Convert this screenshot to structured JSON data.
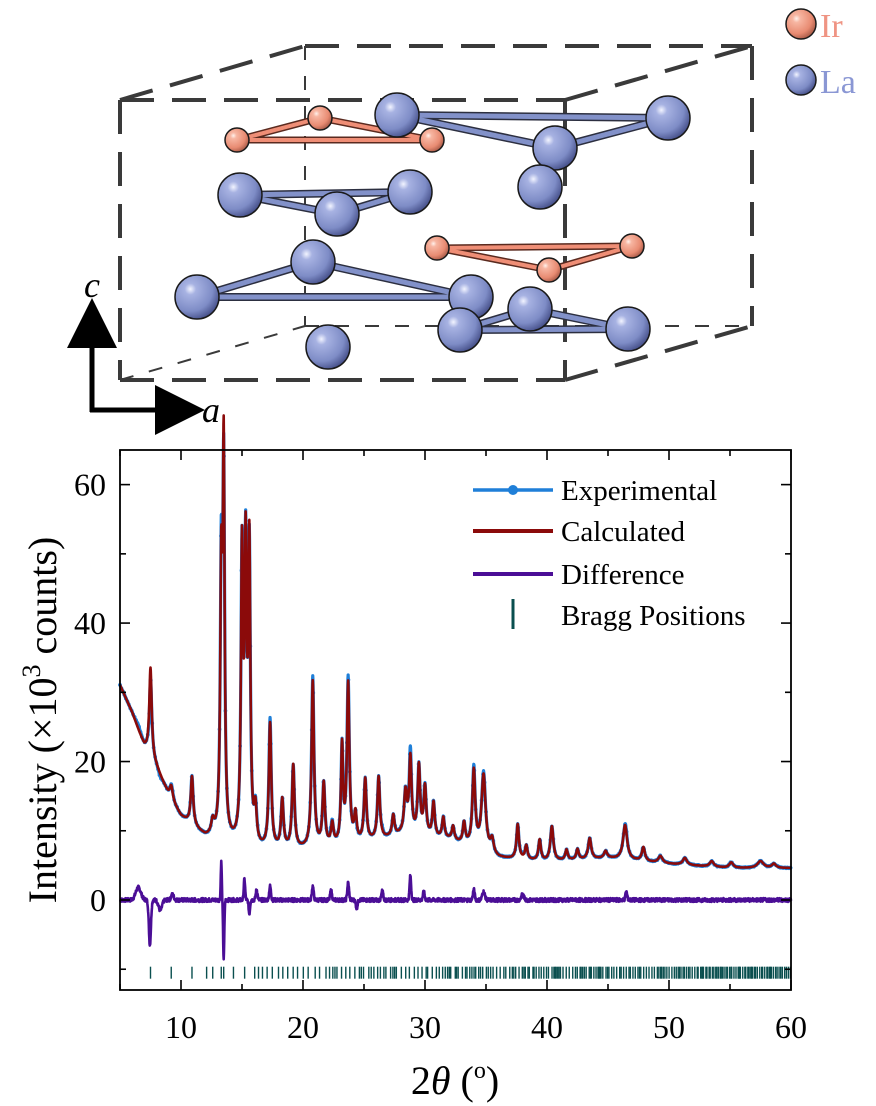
{
  "structure": {
    "legend": [
      {
        "element": "Ir",
        "color": "#EF8E76",
        "text_color": "#EF9483"
      },
      {
        "element": "La",
        "color": "#8291C9",
        "text_color": "#8A97D4"
      }
    ],
    "axis_c": "c",
    "axis_a": "a"
  },
  "chart_data": {
    "type": "line",
    "xlabel_prefix": "2",
    "xlabel_theta": "θ",
    "xlabel_open": " (",
    "xlabel_degree": "o",
    "xlabel_close": ")",
    "ylabel_main": "Intensity (×10",
    "ylabel_sup": "3",
    "ylabel_end": " counts)",
    "xlim": [
      5,
      60
    ],
    "ylim": [
      -13,
      65
    ],
    "xticks": [
      10,
      20,
      30,
      40,
      50,
      60
    ],
    "xtick_labels": [
      "10",
      "20",
      "30",
      "40",
      "50",
      "60"
    ],
    "yticks": [
      0,
      20,
      40,
      60
    ],
    "ytick_labels": [
      "0",
      "20",
      "40",
      "60"
    ],
    "grid": false,
    "legend_position": "top-right",
    "legend": [
      {
        "name": "Experimental",
        "color": "#1F7FD8"
      },
      {
        "name": "Calculated",
        "color": "#8B0A0A"
      },
      {
        "name": "Difference",
        "color": "#4B0E96"
      },
      {
        "name": "Bragg Positions",
        "color": "#0A4F4F"
      }
    ],
    "background": [
      [
        5,
        31
      ],
      [
        6,
        27
      ],
      [
        7,
        22
      ],
      [
        8,
        19
      ],
      [
        9,
        15
      ],
      [
        10,
        12
      ],
      [
        12,
        9
      ],
      [
        14,
        8
      ],
      [
        16,
        7
      ],
      [
        20,
        7.2
      ],
      [
        24,
        7.8
      ],
      [
        28,
        9.2
      ],
      [
        32,
        8.6
      ],
      [
        36,
        6
      ],
      [
        40,
        5.5
      ],
      [
        45,
        6
      ],
      [
        50,
        5.2
      ],
      [
        55,
        4.6
      ],
      [
        60,
        4.6
      ]
    ],
    "peaks": [
      [
        7.5,
        13,
        0.12
      ],
      [
        9.2,
        2,
        0.15
      ],
      [
        10.9,
        7,
        0.12
      ],
      [
        12.6,
        2,
        0.15
      ],
      [
        13.3,
        36,
        0.1
      ],
      [
        13.5,
        54,
        0.09
      ],
      [
        15.0,
        41,
        0.1
      ],
      [
        15.3,
        40,
        0.1
      ],
      [
        15.6,
        42,
        0.1
      ],
      [
        16.1,
        5,
        0.12
      ],
      [
        17.3,
        18,
        0.12
      ],
      [
        18.3,
        7,
        0.12
      ],
      [
        19.2,
        12,
        0.12
      ],
      [
        20.8,
        24,
        0.12
      ],
      [
        21.7,
        9,
        0.12
      ],
      [
        22.4,
        3,
        0.12
      ],
      [
        23.2,
        14,
        0.1
      ],
      [
        23.7,
        23,
        0.12
      ],
      [
        24.3,
        4,
        0.12
      ],
      [
        25.1,
        9,
        0.12
      ],
      [
        26.2,
        9,
        0.12
      ],
      [
        27.4,
        3,
        0.12
      ],
      [
        28.4,
        6,
        0.14
      ],
      [
        28.8,
        11,
        0.12
      ],
      [
        29.5,
        10,
        0.12
      ],
      [
        30.0,
        7,
        0.12
      ],
      [
        30.7,
        5,
        0.12
      ],
      [
        31.5,
        3,
        0.12
      ],
      [
        32.3,
        2,
        0.12
      ],
      [
        33.2,
        3,
        0.12
      ],
      [
        34.0,
        11,
        0.14
      ],
      [
        34.8,
        11,
        0.2
      ],
      [
        35.5,
        2,
        0.15
      ],
      [
        37.6,
        5,
        0.12
      ],
      [
        38.3,
        2,
        0.12
      ],
      [
        39.4,
        3,
        0.12
      ],
      [
        40.4,
        5,
        0.15
      ],
      [
        41.6,
        1.5,
        0.12
      ],
      [
        42.5,
        1.5,
        0.12
      ],
      [
        43.5,
        3,
        0.15
      ],
      [
        44.8,
        1,
        0.15
      ],
      [
        46.4,
        5,
        0.2
      ],
      [
        47.9,
        2,
        0.15
      ],
      [
        49.3,
        1,
        0.2
      ],
      [
        51.3,
        1,
        0.2
      ],
      [
        53.5,
        0.8,
        0.2
      ],
      [
        55.1,
        0.8,
        0.2
      ],
      [
        57.5,
        1,
        0.3
      ],
      [
        58.6,
        0.6,
        0.2
      ]
    ],
    "difference_features": [
      [
        6.5,
        1.8,
        0.3
      ],
      [
        7.45,
        -6.5,
        0.12
      ],
      [
        8.3,
        -1.5,
        0.2
      ],
      [
        9.3,
        0.8,
        0.15
      ],
      [
        13.3,
        5.5,
        0.06
      ],
      [
        13.5,
        -8.5,
        0.07
      ],
      [
        15.2,
        3,
        0.08
      ],
      [
        15.6,
        -2,
        0.08
      ],
      [
        16.2,
        1.5,
        0.1
      ],
      [
        17.3,
        2,
        0.1
      ],
      [
        20.8,
        2,
        0.1
      ],
      [
        22.3,
        1.4,
        0.1
      ],
      [
        23.7,
        2.5,
        0.1
      ],
      [
        24.4,
        -1.2,
        0.1
      ],
      [
        26.5,
        1.3,
        0.1
      ],
      [
        28.8,
        3.5,
        0.09
      ],
      [
        29.9,
        1.2,
        0.1
      ],
      [
        34.0,
        1.5,
        0.1
      ],
      [
        34.8,
        1.2,
        0.15
      ],
      [
        38.0,
        0.8,
        0.15
      ],
      [
        46.5,
        1.2,
        0.1
      ]
    ],
    "bragg_y": -10.5
  }
}
